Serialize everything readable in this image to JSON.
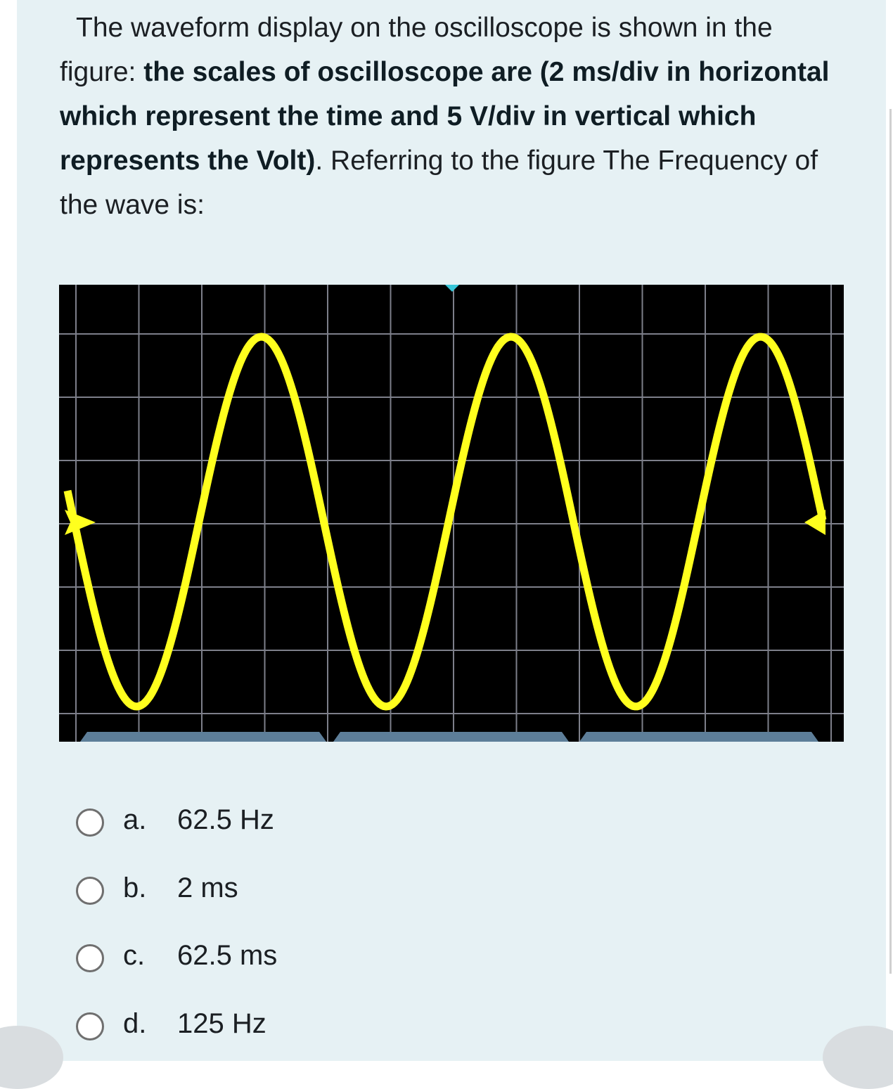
{
  "question": [
    {
      "text": "The waveform display on the oscilloscope is shown in the figure: ",
      "bold": false
    },
    {
      "text": "the scales of oscilloscope are  (2 ms/div in horizontal which represent the time and 5 V/div in vertical which represents the Volt)",
      "bold": true
    },
    {
      "text": ". Referring to the figure The Frequency of the wave is:",
      "bold": false
    }
  ],
  "options": [
    {
      "letter": "a.",
      "text": "62.5 Hz"
    },
    {
      "letter": "b.",
      "text": "2 ms"
    },
    {
      "letter": "c.",
      "text": "62.5 ms"
    },
    {
      "letter": "d.",
      "text": "125 Hz"
    }
  ]
}
